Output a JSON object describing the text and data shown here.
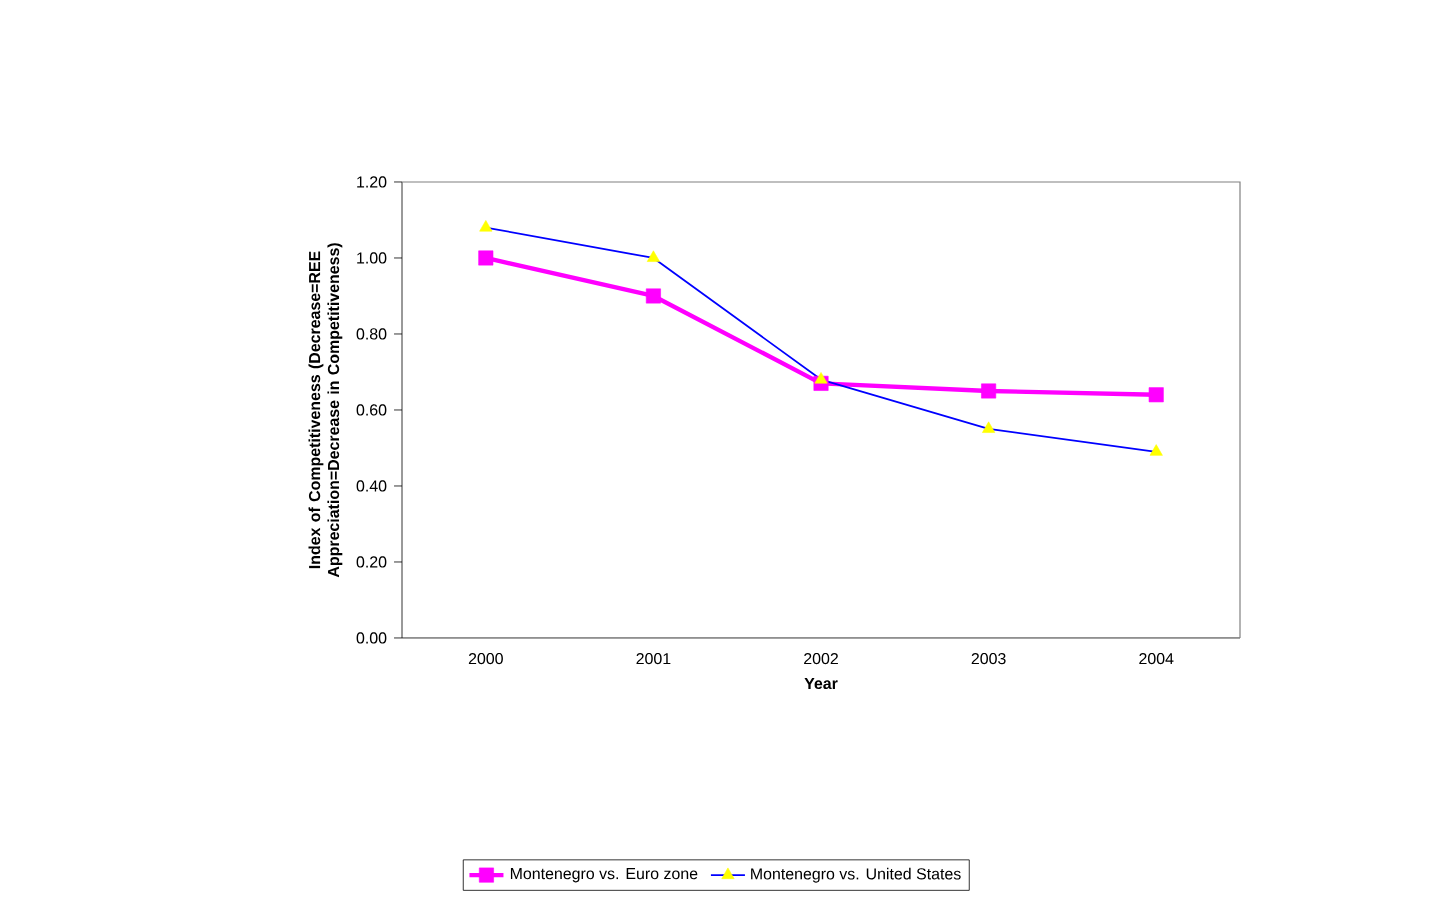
{
  "chart_data": {
    "type": "line",
    "xlabel": "Year",
    "ylabel": "Index of Competitiveness (Decrease=REE Appreciation=Decrease in Competitiveness)",
    "categories": [
      "2000",
      "2001",
      "2002",
      "2003",
      "2004"
    ],
    "series": [
      {
        "name": "Montenegro vs. Euro zone",
        "color": "#ff00ff",
        "marker": "square",
        "values": [
          1.0,
          0.9,
          0.67,
          0.65,
          0.64
        ]
      },
      {
        "name": "Montenegro vs. United States",
        "color": "#0000ff",
        "marker": "triangle",
        "values": [
          1.08,
          1.0,
          0.68,
          0.55,
          0.49
        ]
      }
    ],
    "ylim": [
      0,
      1.2
    ],
    "yticks": [
      {
        "value": 0,
        "label": "0.00"
      },
      {
        "value": 0.2,
        "label": "0.20"
      },
      {
        "value": 0.4,
        "label": "0.40"
      },
      {
        "value": 0.6,
        "label": "0.60"
      },
      {
        "value": 0.8,
        "label": "0.80"
      },
      {
        "value": 1.0,
        "label": "1.00"
      },
      {
        "value": 1.2,
        "label": "1.20"
      }
    ],
    "grid": false,
    "legend": "bottom",
    "line_style": "solid"
  }
}
